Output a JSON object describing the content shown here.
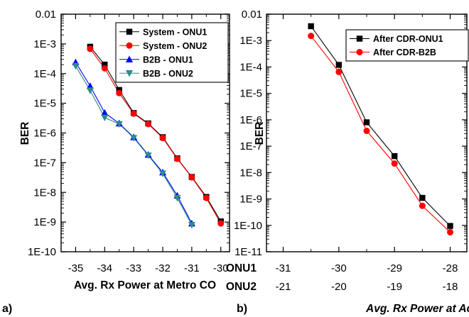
{
  "chart_data": [
    {
      "type": "line",
      "panel_label": "a)",
      "title": "",
      "xlabel": "Avg. Rx Power at Metro CO",
      "ylabel": "BER",
      "x_ticks": [
        -35,
        -34,
        -33,
        -32,
        -31,
        -30
      ],
      "xlim": [
        -35.5,
        -29.7
      ],
      "y_ticks": [
        "0.01",
        "1E-3",
        "1E-4",
        "1E-5",
        "1E-6",
        "1E-7",
        "1E-8",
        "1E-9",
        "1E-10"
      ],
      "ylim_log10": [
        -10,
        -2
      ],
      "y_scale": "log",
      "legend_position": "top-right",
      "series": [
        {
          "name": "System - ONU1",
          "color": "#000000",
          "marker": "square",
          "x": [
            -34.5,
            -34.0,
            -33.5,
            -33.0,
            -32.5,
            -32.0,
            -31.5,
            -31.0,
            -30.5,
            -30.0
          ],
          "y": [
            0.0008,
            0.0002,
            2.8e-05,
            4.7e-06,
            2.1e-06,
            7.2e-07,
            1.4e-07,
            3.3e-08,
            7e-09,
            1.05e-09
          ]
        },
        {
          "name": "System - ONU2",
          "color": "#ff0000",
          "marker": "circle",
          "x": [
            -34.5,
            -34.0,
            -33.5,
            -33.0,
            -32.5,
            -32.0,
            -31.5,
            -31.0,
            -30.5,
            -30.0
          ],
          "y": [
            0.00068,
            0.00015,
            2.2e-05,
            4.5e-06,
            2e-06,
            6.8e-07,
            1.35e-07,
            3.2e-08,
            6.5e-09,
            9e-10
          ]
        },
        {
          "name": "B2B - ONU1",
          "color": "#0000ff",
          "marker": "triangle-up",
          "x": [
            -35.0,
            -34.5,
            -34.0,
            -33.5,
            -33.0,
            -32.5,
            -32.0,
            -31.5,
            -31.0
          ],
          "y": [
            0.00024,
            3.8e-05,
            4.8e-06,
            2.1e-06,
            7.2e-07,
            1.85e-07,
            4.7e-08,
            7.8e-09,
            9e-10
          ]
        },
        {
          "name": "B2B - ONU2",
          "color": "#2e8b8b",
          "marker": "triangle-down",
          "x": [
            -35.0,
            -34.5,
            -34.0,
            -33.5,
            -33.0,
            -32.5,
            -32.0,
            -31.5,
            -31.0
          ],
          "y": [
            0.00018,
            2.7e-05,
            3.3e-06,
            2e-06,
            6.8e-07,
            1.75e-07,
            4.3e-08,
            6.5e-09,
            8e-10
          ]
        }
      ]
    },
    {
      "type": "line",
      "panel_label": "b)",
      "title": "",
      "xlabel": "Avg. Rx Power at Access CO",
      "ylabel": "BER",
      "x_ticks": [
        -31,
        -30,
        -29,
        -28
      ],
      "x_tick_rows": [
        {
          "label": "ONU1",
          "ticks": [
            "-31",
            "-30",
            "-29",
            "-28"
          ]
        },
        {
          "label": "ONU2",
          "ticks": [
            "-21",
            "-20",
            "-19",
            "-18"
          ]
        }
      ],
      "xlim": [
        -31.3,
        -27.7
      ],
      "y_ticks": [
        "0.01",
        "1E-3",
        "1E-4",
        "1E-5",
        "1E-6",
        "1E-7",
        "1E-8",
        "1E-9",
        "1E-10",
        "1E-11"
      ],
      "ylim_log10": [
        -11,
        -2
      ],
      "y_scale": "log",
      "legend_position": "top-right",
      "series": [
        {
          "name": "After CDR-ONU1",
          "color": "#000000",
          "marker": "square",
          "x": [
            -30.5,
            -30.0,
            -29.5,
            -29.0,
            -28.5,
            -28.0
          ],
          "y": [
            0.0035,
            0.00012,
            8e-07,
            4.2e-08,
            1.1e-09,
            9.5e-11
          ]
        },
        {
          "name": "After CDR-B2B",
          "color": "#ff0000",
          "marker": "circle",
          "x": [
            -30.5,
            -30.0,
            -29.5,
            -29.0,
            -28.5,
            -28.0
          ],
          "y": [
            0.0015,
            6.5e-05,
            3.8e-07,
            2.2e-08,
            5.5e-10,
            5.5e-11
          ]
        }
      ]
    }
  ]
}
